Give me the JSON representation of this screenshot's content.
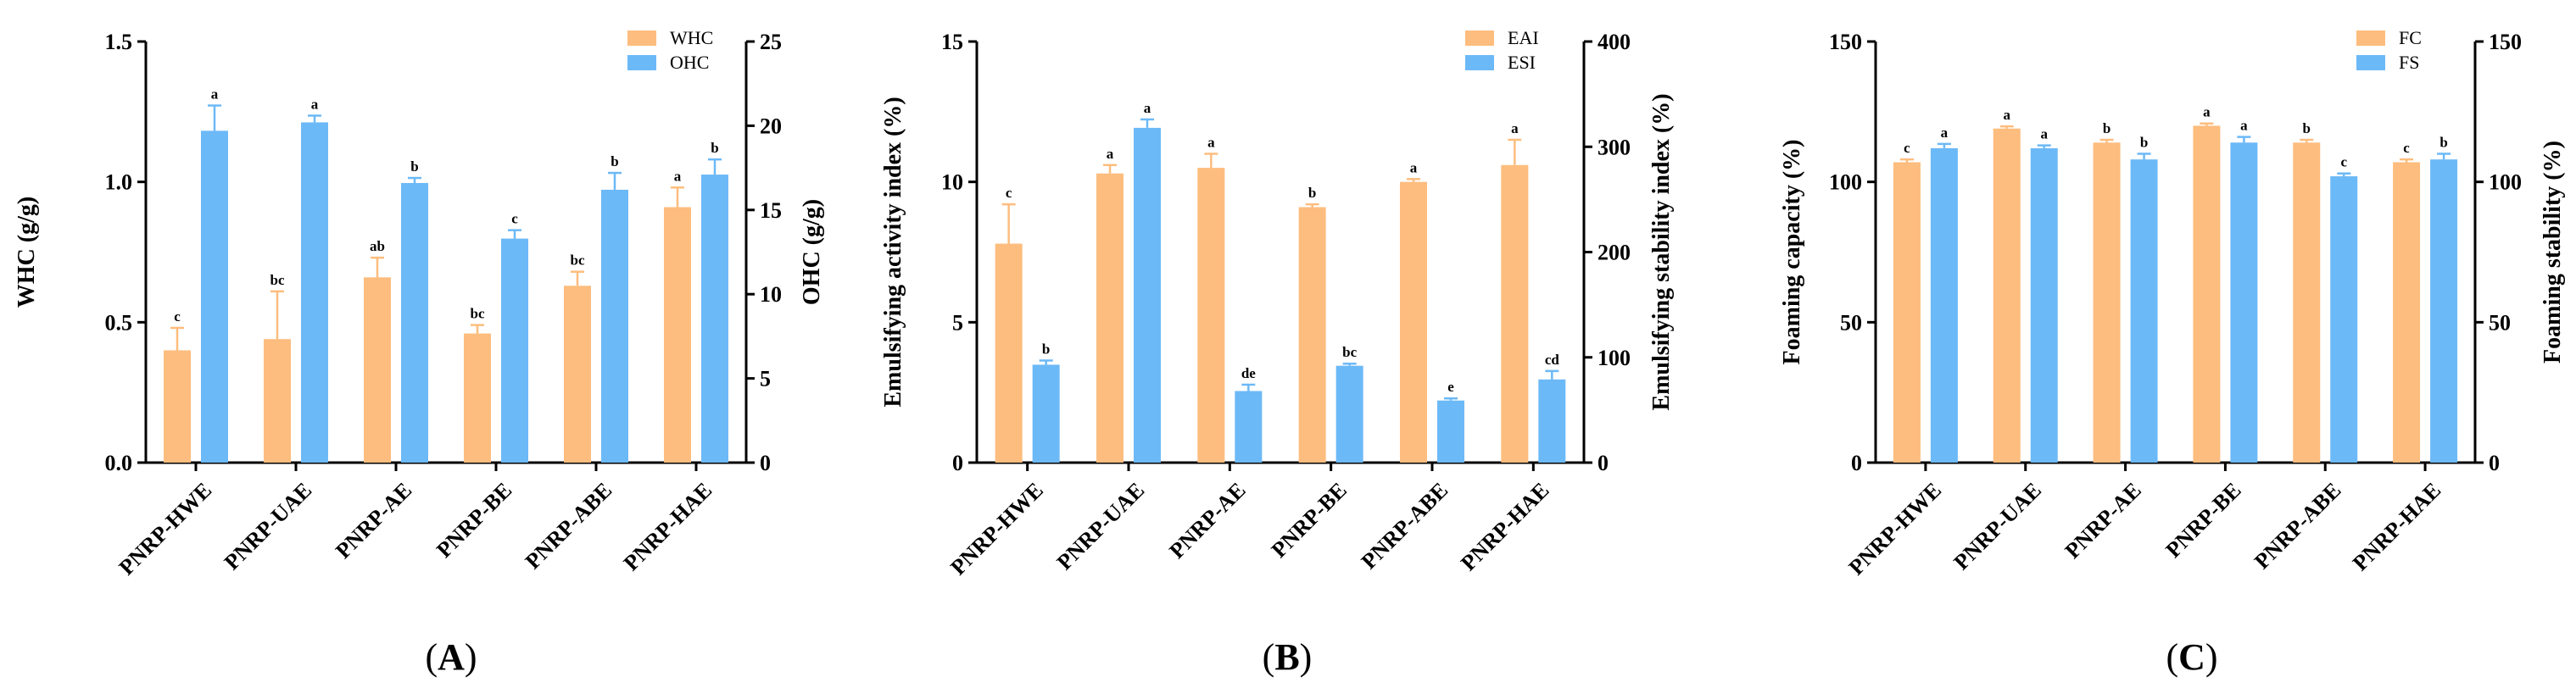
{
  "colors": {
    "series1": "#FDBD7E",
    "series2": "#6CB9F7",
    "axis": "#000000"
  },
  "chart_data": [
    {
      "type": "bar",
      "panel_label": "A",
      "categories": [
        "PNRP-HWE",
        "PNRP-UAE",
        "PNRP-AE",
        "PNRP-BE",
        "PNRP-ABE",
        "PNRP-HAE"
      ],
      "left_axis": {
        "label": "WHC (g/g)",
        "ylim": [
          0,
          1.5
        ],
        "ticks": [
          "0.0",
          "0.5",
          "1.0",
          "1.5"
        ],
        "tick_values": [
          0,
          0.5,
          1.0,
          1.5
        ]
      },
      "right_axis": {
        "label": "OHC (g/g)",
        "ylim": [
          0,
          25
        ],
        "ticks": [
          "0",
          "5",
          "10",
          "15",
          "20",
          "25"
        ],
        "tick_values": [
          0,
          5,
          10,
          15,
          20,
          25
        ]
      },
      "legend_position": "top-right",
      "series": [
        {
          "name": "WHC",
          "axis": "left",
          "values": [
            0.4,
            0.44,
            0.66,
            0.46,
            0.63,
            0.91
          ],
          "errors": [
            0.08,
            0.17,
            0.07,
            0.03,
            0.05,
            0.07
          ],
          "labels": [
            "c",
            "bc",
            "ab",
            "bc",
            "bc",
            "a"
          ]
        },
        {
          "name": "OHC",
          "axis": "right",
          "values": [
            19.7,
            20.2,
            16.6,
            13.3,
            16.2,
            17.1
          ],
          "errors": [
            1.5,
            0.4,
            0.3,
            0.5,
            1.0,
            0.9
          ],
          "labels": [
            "a",
            "a",
            "b",
            "c",
            "b",
            "b"
          ]
        }
      ]
    },
    {
      "type": "bar",
      "panel_label": "B",
      "categories": [
        "PNRP-HWE",
        "PNRP-UAE",
        "PNRP-AE",
        "PNRP-BE",
        "PNRP-ABE",
        "PNRP-HAE"
      ],
      "left_axis": {
        "label": "Emulsifying activity index (%)",
        "ylim": [
          0,
          15
        ],
        "ticks": [
          "0",
          "5",
          "10",
          "15"
        ],
        "tick_values": [
          0,
          5,
          10,
          15
        ]
      },
      "right_axis": {
        "label": "Emulsifying stability index (%)",
        "ylim": [
          0,
          400
        ],
        "ticks": [
          "0",
          "100",
          "200",
          "300",
          "400"
        ],
        "tick_values": [
          0,
          100,
          200,
          300,
          400
        ]
      },
      "legend_position": "top-right",
      "series": [
        {
          "name": "EAI",
          "axis": "left",
          "values": [
            7.8,
            10.3,
            10.5,
            9.1,
            10.0,
            10.6
          ],
          "errors": [
            1.4,
            0.3,
            0.5,
            0.1,
            0.1,
            0.9
          ],
          "labels": [
            "c",
            "a",
            "a",
            "b",
            "a",
            "a"
          ]
        },
        {
          "name": "ESI",
          "axis": "right",
          "values": [
            93,
            318,
            68,
            92,
            59,
            79
          ],
          "errors": [
            4,
            8,
            6,
            2,
            2,
            8
          ],
          "labels": [
            "b",
            "a",
            "de",
            "bc",
            "e",
            "cd"
          ]
        }
      ]
    },
    {
      "type": "bar",
      "panel_label": "C",
      "categories": [
        "PNRP-HWE",
        "PNRP-UAE",
        "PNRP-AE",
        "PNRP-BE",
        "PNRP-ABE",
        "PNRP-HAE"
      ],
      "left_axis": {
        "label": "Foaming capacity (%)",
        "ylim": [
          0,
          150
        ],
        "ticks": [
          "0",
          "50",
          "100",
          "150"
        ],
        "tick_values": [
          0,
          50,
          100,
          150
        ]
      },
      "right_axis": {
        "label": "Foaming stability (%)",
        "ylim": [
          0,
          150
        ],
        "ticks": [
          "0",
          "50",
          "100",
          "150"
        ],
        "tick_values": [
          0,
          50,
          100,
          150
        ]
      },
      "legend_position": "top-right",
      "series": [
        {
          "name": "FC",
          "axis": "left",
          "values": [
            107,
            119,
            114,
            120,
            114,
            107
          ],
          "errors": [
            1,
            0.8,
            1,
            0.8,
            1,
            1
          ],
          "labels": [
            "c",
            "a",
            "b",
            "a",
            "b",
            "c"
          ]
        },
        {
          "name": "FS",
          "axis": "right",
          "values": [
            112,
            112,
            108,
            114,
            102,
            108
          ],
          "errors": [
            1.5,
            1,
            2,
            2,
            1,
            2
          ],
          "labels": [
            "a",
            "a",
            "b",
            "a",
            "c",
            "b"
          ]
        }
      ]
    }
  ]
}
